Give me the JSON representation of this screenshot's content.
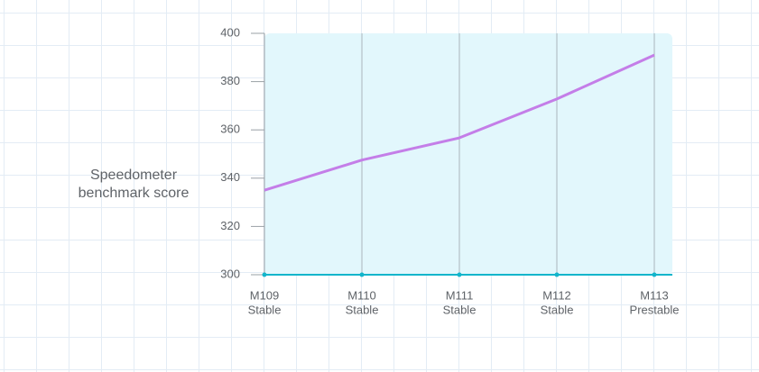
{
  "chart_data": {
    "type": "line",
    "ylabel": [
      "Speedometer",
      "benchmark score"
    ],
    "categories": [
      [
        "M109",
        "Stable"
      ],
      [
        "M110",
        "Stable"
      ],
      [
        "M111",
        "Stable"
      ],
      [
        "M112",
        "Stable"
      ],
      [
        "M113",
        "Prestable"
      ]
    ],
    "series": [
      {
        "color": "#c47ee8",
        "values": [
          335,
          347.5,
          356.7,
          372.8,
          391
        ]
      }
    ],
    "ylim": [
      300,
      400
    ],
    "yticks": [
      300,
      320,
      340,
      360,
      380,
      400
    ],
    "grid": true
  }
}
